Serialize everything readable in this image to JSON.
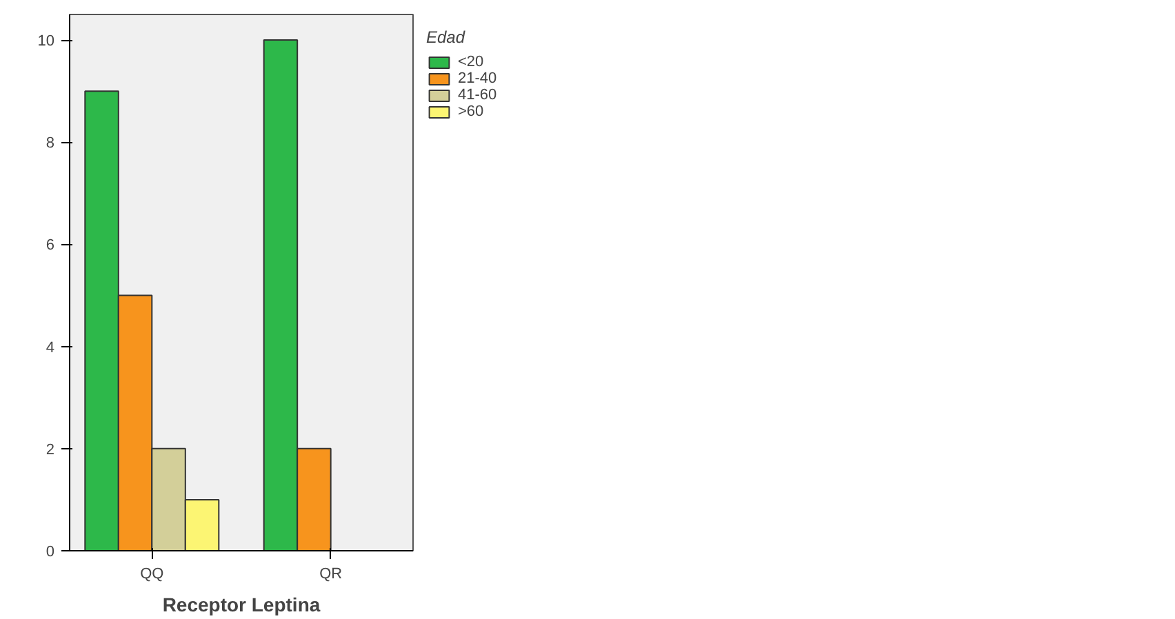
{
  "chart_data": {
    "type": "bar",
    "xlabel": "Receptor Leptina",
    "legend_title": "Edad",
    "categories": [
      "QQ",
      "QR"
    ],
    "series": [
      {
        "name": "<20",
        "color": "#2db84a",
        "values": [
          9,
          10
        ]
      },
      {
        "name": "21-40",
        "color": "#f7941d",
        "values": [
          5,
          2
        ]
      },
      {
        "name": "41-60",
        "color": "#d3cf99",
        "values": [
          2,
          null
        ]
      },
      {
        "name": ">60",
        "color": "#fcf573",
        "values": [
          1,
          null
        ]
      }
    ],
    "ylim": [
      0,
      10.5
    ],
    "yticks": [
      0,
      2,
      4,
      6,
      8,
      10
    ],
    "grid": false,
    "legend": "right"
  }
}
